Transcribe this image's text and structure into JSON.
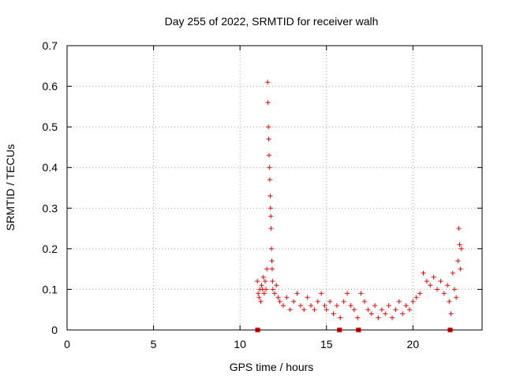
{
  "chart_data": {
    "type": "scatter",
    "title": "Day 255 of 2022, SRMTID for receiver walh",
    "xlabel": "GPS time / hours",
    "ylabel": "SRMTID / TECUs",
    "xlim": [
      0,
      24
    ],
    "ylim": [
      0,
      0.7
    ],
    "xticks": [
      "0",
      "5",
      "10",
      "15",
      "20"
    ],
    "yticks": [
      "0",
      "0.1",
      "0.2",
      "0.3",
      "0.4",
      "0.5",
      "0.6",
      "0.7"
    ],
    "grid": true,
    "marker": "+",
    "color": "#ff0000",
    "series": [
      {
        "name": "SRMTID",
        "x": [
          11.0,
          11.05,
          11.1,
          11.15,
          11.2,
          11.25,
          11.3,
          11.35,
          11.4,
          11.45,
          11.5,
          11.55,
          11.6,
          11.62,
          11.64,
          11.66,
          11.68,
          11.7,
          11.72,
          11.74,
          11.76,
          11.78,
          11.8,
          11.82,
          11.84,
          11.86,
          11.88,
          11.9,
          12.0,
          12.1,
          12.2,
          12.3,
          12.5,
          12.7,
          12.9,
          13.1,
          13.3,
          13.5,
          13.7,
          13.9,
          14.1,
          14.3,
          14.5,
          14.7,
          14.9,
          15.0,
          15.2,
          15.4,
          15.6,
          15.8,
          16.0,
          16.2,
          16.4,
          16.6,
          16.8,
          17.0,
          17.2,
          17.4,
          17.6,
          17.8,
          18.0,
          18.2,
          18.4,
          18.6,
          18.8,
          19.0,
          19.2,
          19.4,
          19.6,
          19.8,
          20.0,
          20.2,
          20.4,
          20.6,
          20.8,
          21.0,
          21.2,
          21.4,
          21.6,
          21.8,
          22.0,
          22.1,
          22.2,
          22.3,
          22.4,
          22.5,
          22.6,
          22.65,
          22.7,
          22.75,
          22.8,
          11.02,
          15.75,
          16.85,
          22.15
        ],
        "y": [
          0.12,
          0.09,
          0.08,
          0.1,
          0.07,
          0.11,
          0.1,
          0.13,
          0.09,
          0.12,
          0.1,
          0.15,
          0.61,
          0.56,
          0.5,
          0.47,
          0.43,
          0.4,
          0.37,
          0.33,
          0.3,
          0.28,
          0.25,
          0.2,
          0.17,
          0.15,
          0.12,
          0.1,
          0.09,
          0.11,
          0.08,
          0.07,
          0.06,
          0.08,
          0.05,
          0.07,
          0.09,
          0.06,
          0.05,
          0.08,
          0.06,
          0.05,
          0.07,
          0.09,
          0.06,
          0.05,
          0.07,
          0.04,
          0.06,
          0.03,
          0.07,
          0.09,
          0.06,
          0.05,
          0.03,
          0.09,
          0.07,
          0.05,
          0.04,
          0.06,
          0.03,
          0.05,
          0.04,
          0.06,
          0.03,
          0.05,
          0.07,
          0.04,
          0.06,
          0.05,
          0.07,
          0.08,
          0.09,
          0.14,
          0.12,
          0.11,
          0.13,
          0.1,
          0.12,
          0.09,
          0.11,
          0.07,
          0.04,
          0.14,
          0.1,
          0.08,
          0.17,
          0.25,
          0.21,
          0.15,
          0.2,
          0.0,
          0.0,
          0.0,
          0.0
        ]
      }
    ]
  }
}
